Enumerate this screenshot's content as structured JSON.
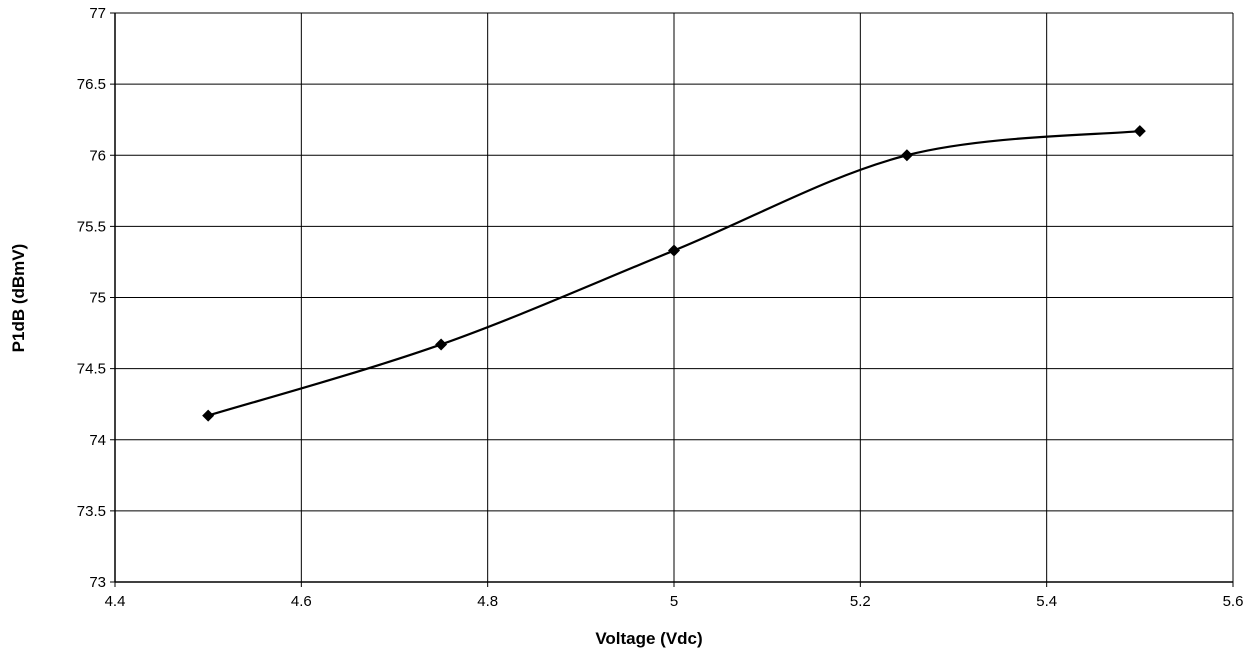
{
  "chart_data": {
    "type": "line",
    "title": "",
    "xlabel": "Voltage (Vdc)",
    "ylabel": "P1dB (dBmV)",
    "xlim": [
      4.4,
      5.6
    ],
    "ylim": [
      73,
      77
    ],
    "x_ticks": [
      "4.4",
      "4.6",
      "4.8",
      "5",
      "5.2",
      "5.4",
      "5.6"
    ],
    "y_ticks": [
      "73",
      "73.5",
      "74",
      "74.5",
      "75",
      "75.5",
      "76",
      "76.5",
      "77"
    ],
    "grid": true,
    "smooth": true,
    "line_color": "#000000",
    "marker": "diamond",
    "series": [
      {
        "x": [
          4.5,
          4.75,
          5.0,
          5.25,
          5.5
        ],
        "values": [
          74.17,
          74.67,
          75.33,
          76.0,
          76.17
        ]
      }
    ]
  }
}
